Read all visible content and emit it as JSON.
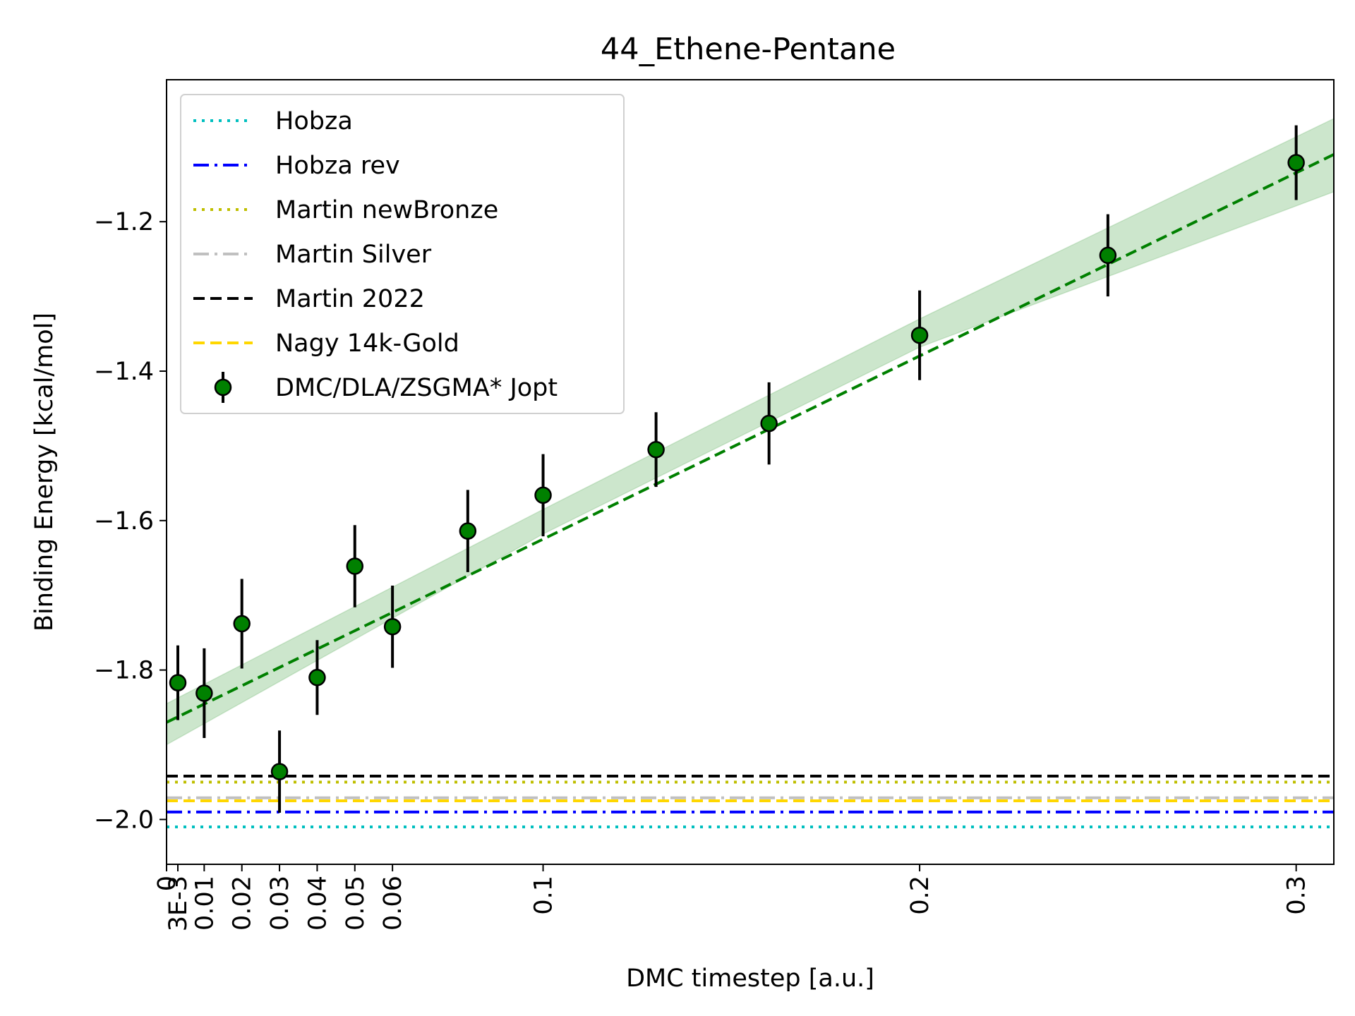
{
  "chart_data": {
    "type": "scatter",
    "title": "44_Ethene-Pentane",
    "xlabel": "DMC timestep [a.u.]",
    "ylabel": "Binding Energy [kcal/mol]",
    "xlim": [
      0,
      0.31
    ],
    "ylim": [
      -2.06,
      -1.01
    ],
    "x_ticks": [
      {
        "value": 0,
        "label": "0"
      },
      {
        "value": 0.003,
        "label": "3E-3"
      },
      {
        "value": 0.01,
        "label": "0.01"
      },
      {
        "value": 0.02,
        "label": "0.02"
      },
      {
        "value": 0.03,
        "label": "0.03"
      },
      {
        "value": 0.04,
        "label": "0.04"
      },
      {
        "value": 0.05,
        "label": "0.05"
      },
      {
        "value": 0.06,
        "label": "0.06"
      },
      {
        "value": 0.1,
        "label": "0.1"
      },
      {
        "value": 0.2,
        "label": "0.2"
      },
      {
        "value": 0.3,
        "label": "0.3"
      }
    ],
    "y_ticks": [
      {
        "value": -2.0,
        "label": "−2.0"
      },
      {
        "value": -1.8,
        "label": "−1.8"
      },
      {
        "value": -1.6,
        "label": "−1.6"
      },
      {
        "value": -1.4,
        "label": "−1.4"
      },
      {
        "value": -1.2,
        "label": "−1.2"
      }
    ],
    "grid": false,
    "legend_position": "top-left",
    "reference_lines": [
      {
        "name": "Hobza",
        "y": -2.01,
        "color": "#00bfbf",
        "style": "dotted"
      },
      {
        "name": "Hobza rev",
        "y": -1.99,
        "color": "#0000ff",
        "style": "dashdot"
      },
      {
        "name": "Martin newBronze",
        "y": -1.95,
        "color": "#bfbf00",
        "style": "dotted"
      },
      {
        "name": "Martin Silver",
        "y": -1.971,
        "color": "#c0c0c0",
        "style": "dashdot"
      },
      {
        "name": "Martin 2022",
        "y": -1.942,
        "color": "#000000",
        "style": "dashed"
      },
      {
        "name": "Nagy 14k-Gold",
        "y": -1.975,
        "color": "#ffd700",
        "style": "dashed"
      }
    ],
    "series": [
      {
        "name": "DMC/DLA/ZSGMA* Jopt",
        "color": "#008000",
        "points": [
          {
            "x": 0.003,
            "y": -1.817,
            "err": 0.05
          },
          {
            "x": 0.01,
            "y": -1.831,
            "err": 0.06
          },
          {
            "x": 0.02,
            "y": -1.738,
            "err": 0.06
          },
          {
            "x": 0.03,
            "y": -1.936,
            "err": 0.055
          },
          {
            "x": 0.04,
            "y": -1.81,
            "err": 0.05
          },
          {
            "x": 0.05,
            "y": -1.661,
            "err": 0.055
          },
          {
            "x": 0.06,
            "y": -1.742,
            "err": 0.055
          },
          {
            "x": 0.08,
            "y": -1.614,
            "err": 0.055
          },
          {
            "x": 0.1,
            "y": -1.566,
            "err": 0.055
          },
          {
            "x": 0.13,
            "y": -1.505,
            "err": 0.05
          },
          {
            "x": 0.16,
            "y": -1.47,
            "err": 0.055
          },
          {
            "x": 0.2,
            "y": -1.352,
            "err": 0.06
          },
          {
            "x": 0.25,
            "y": -1.245,
            "err": 0.055
          },
          {
            "x": 0.3,
            "y": -1.121,
            "err": 0.05
          }
        ]
      }
    ],
    "fit": {
      "color": "#008000",
      "style": "dashed",
      "points": [
        {
          "x": 0,
          "y": -1.87
        },
        {
          "x": 0.31,
          "y": -1.11
        }
      ],
      "band": [
        {
          "x": 0,
          "lower": -1.9,
          "upper": -1.845
        },
        {
          "x": 0.1,
          "lower": -1.618,
          "upper": -1.585
        },
        {
          "x": 0.2,
          "lower": -1.368,
          "upper": -1.33
        },
        {
          "x": 0.31,
          "lower": -1.16,
          "upper": -1.062
        }
      ]
    }
  }
}
